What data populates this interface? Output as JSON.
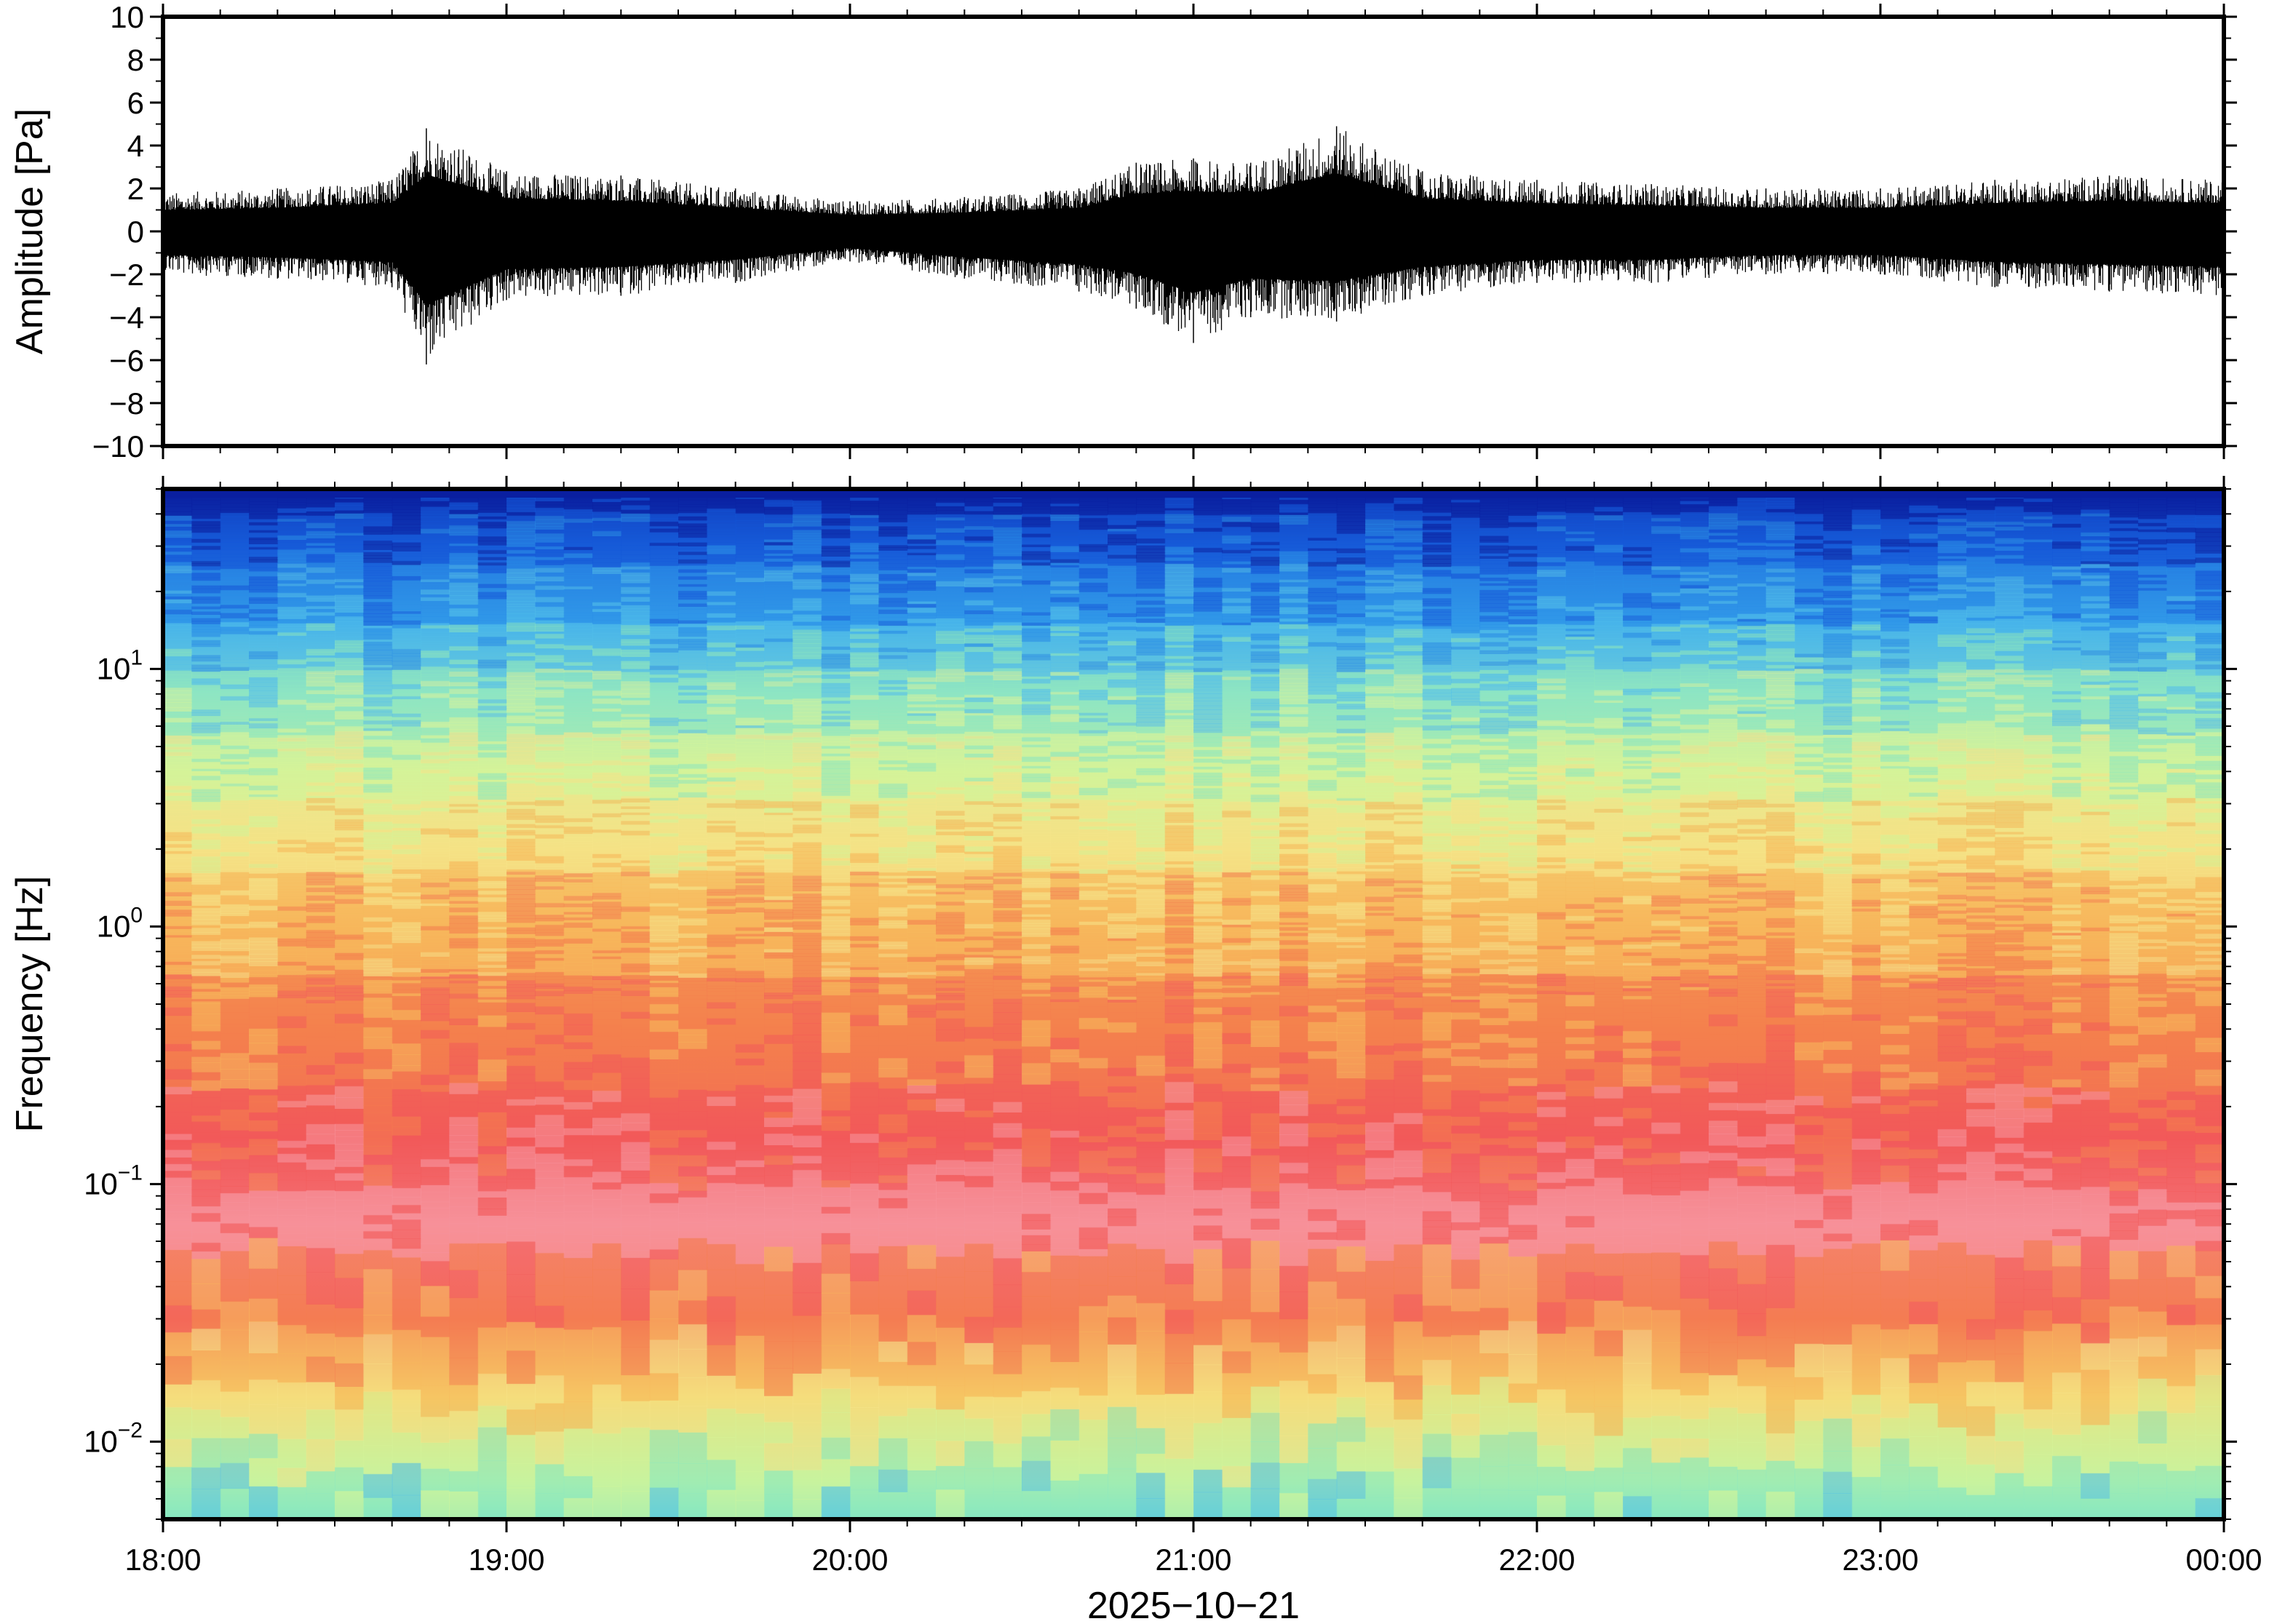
{
  "chart_data": [
    {
      "type": "line",
      "xlabel": "",
      "ylabel": "Amplitude [Pa]",
      "x_range": [
        "18:00",
        "00:00"
      ],
      "ylim": [
        -10,
        10
      ],
      "y_ticks": [
        10,
        8,
        6,
        4,
        2,
        0,
        -2,
        -4,
        -6,
        -8,
        -10
      ],
      "y_tick_labels": [
        "10",
        "8",
        "6",
        "4",
        "2",
        "0",
        "−2",
        "−4",
        "−6",
        "−8",
        "−10"
      ],
      "series": [
        {
          "color": "#000000",
          "envelope_x": [
            "18:00",
            "18:20",
            "18:40",
            "18:46",
            "19:00",
            "19:20",
            "19:40",
            "20:00",
            "20:20",
            "20:40",
            "20:50",
            "21:00",
            "21:10",
            "21:25",
            "21:40",
            "22:00",
            "22:20",
            "22:40",
            "23:00",
            "23:20",
            "23:40",
            "00:00"
          ],
          "envelope_upper": [
            1.8,
            2.0,
            2.4,
            4.8,
            2.8,
            2.6,
            2.0,
            1.4,
            1.6,
            2.0,
            3.2,
            3.4,
            3.2,
            4.9,
            2.8,
            2.4,
            2.2,
            2.0,
            2.0,
            2.4,
            2.6,
            2.4
          ],
          "envelope_lower": [
            -2.0,
            -2.2,
            -2.6,
            -6.2,
            -3.2,
            -3.0,
            -2.4,
            -1.4,
            -2.2,
            -2.8,
            -3.6,
            -5.2,
            -4.0,
            -4.2,
            -3.0,
            -2.4,
            -2.4,
            -2.0,
            -2.0,
            -2.6,
            -2.8,
            -3.0
          ]
        }
      ]
    },
    {
      "type": "heatmap",
      "xlabel": "2025−10−21",
      "ylabel": "Frequency [Hz]",
      "x_ticks": [
        "18:00",
        "19:00",
        "20:00",
        "21:00",
        "22:00",
        "23:00",
        "00:00"
      ],
      "y_scale": "log",
      "ylim": [
        0.005,
        50
      ],
      "y_ticks": [
        0.01,
        0.1,
        1,
        10
      ],
      "y_tick_labels": [
        {
          "base": "10",
          "exp": "−2"
        },
        {
          "base": "10",
          "exp": "−1"
        },
        {
          "base": "10",
          "exp": "0"
        },
        {
          "base": "10",
          "exp": "1"
        }
      ],
      "colormap": [
        "#0a1fa0",
        "#1458d8",
        "#2a8ee8",
        "#52c0ea",
        "#8eeac0",
        "#d6f59a",
        "#f5e68a",
        "#f7b95c",
        "#f47d4f",
        "#f25a5a",
        "#f7959e"
      ],
      "color_by_frequency": [
        {
          "freq": 50,
          "color": "#0a1fa0"
        },
        {
          "freq": 30,
          "color": "#1a5fd8"
        },
        {
          "freq": 15,
          "color": "#3aa6ea"
        },
        {
          "freq": 8,
          "color": "#8ee0c8"
        },
        {
          "freq": 4,
          "color": "#d4ef96"
        },
        {
          "freq": 2,
          "color": "#f3dd7e"
        },
        {
          "freq": 1,
          "color": "#f6b35a"
        },
        {
          "freq": 0.4,
          "color": "#f3844c"
        },
        {
          "freq": 0.15,
          "color": "#f1595a"
        },
        {
          "freq": 0.07,
          "color": "#f58a92"
        },
        {
          "freq": 0.03,
          "color": "#f47a58"
        },
        {
          "freq": 0.015,
          "color": "#f4d26a"
        },
        {
          "freq": 0.007,
          "color": "#b8f0a2"
        },
        {
          "freq": 0.005,
          "color": "#7fe6c4"
        }
      ],
      "grid": false
    }
  ]
}
